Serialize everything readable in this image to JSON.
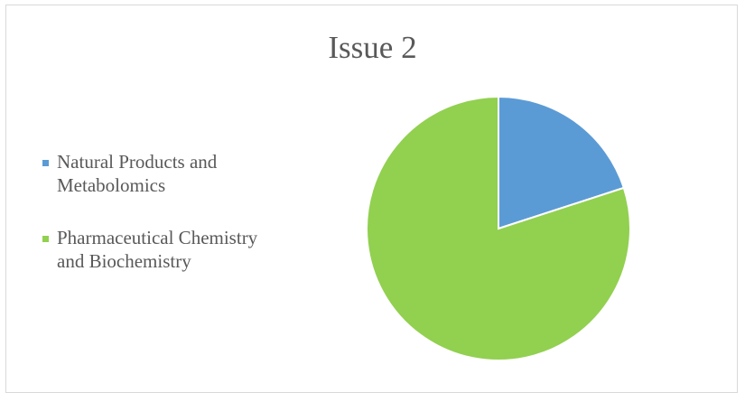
{
  "chart_data": {
    "type": "pie",
    "title": "Issue 2",
    "categories": [
      "Natural Products and Metabolomics",
      "Pharmaceutical Chemistry and Biochemistry"
    ],
    "values": [
      20,
      80
    ],
    "colors": [
      "#5b9bd5",
      "#92d050"
    ],
    "legend_position": "left"
  }
}
